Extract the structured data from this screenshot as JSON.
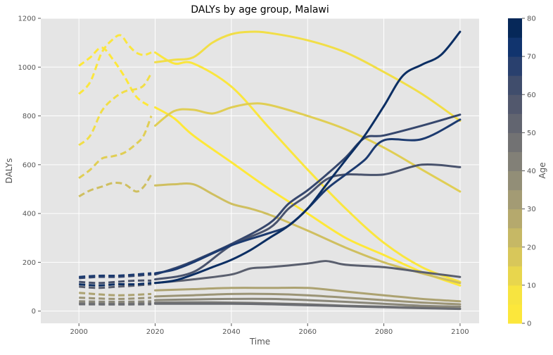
{
  "chart_data": {
    "type": "line",
    "title": "DALYs by age group, Malawi",
    "xlabel": "Time",
    "ylabel": "DALYs",
    "xlim": [
      1990,
      2105
    ],
    "ylim": [
      -50,
      1200
    ],
    "xticks": [
      2000,
      2020,
      2040,
      2060,
      2080,
      2100
    ],
    "yticks": [
      0,
      200,
      400,
      600,
      800,
      1000,
      1200
    ],
    "grid": true,
    "historical_style": "dashed",
    "projection_style": "solid",
    "colorbar": {
      "label": "Age",
      "ticks": [
        0,
        10,
        20,
        30,
        40,
        50,
        60,
        70,
        80
      ],
      "range": [
        0,
        80
      ],
      "colormap": "cividis_r",
      "steps": 16
    },
    "series": [
      {
        "age": 0,
        "historical": {
          "x": [
            2000,
            2003,
            2006,
            2009,
            2012,
            2015,
            2018,
            2019
          ],
          "y": [
            1005,
            1040,
            1080,
            1030,
            960,
            880,
            845,
            840
          ]
        },
        "projection": {
          "x": [
            2020,
            2025,
            2030,
            2040,
            2050,
            2060,
            2070,
            2080,
            2090,
            2100
          ],
          "y": [
            835,
            790,
            720,
            610,
            500,
            400,
            300,
            230,
            160,
            105
          ]
        }
      },
      {
        "age": 5,
        "historical": {
          "x": [
            2000,
            2003,
            2006,
            2009,
            2011,
            2013,
            2015,
            2017,
            2019
          ],
          "y": [
            890,
            940,
            1060,
            1115,
            1130,
            1090,
            1060,
            1050,
            1060
          ]
        },
        "projection": {
          "x": [
            2020,
            2025,
            2030,
            2040,
            2050,
            2060,
            2070,
            2080,
            2090,
            2100
          ],
          "y": [
            1060,
            1015,
            1015,
            920,
            750,
            580,
            420,
            280,
            180,
            120
          ]
        }
      },
      {
        "age": 10,
        "historical": {
          "x": [
            2000,
            2003,
            2006,
            2009,
            2012,
            2015,
            2017,
            2019
          ],
          "y": [
            680,
            720,
            820,
            870,
            900,
            910,
            925,
            975
          ]
        },
        "projection": {
          "x": [
            2020,
            2025,
            2030,
            2035,
            2040,
            2045,
            2050,
            2060,
            2070,
            2080,
            2090,
            2100
          ],
          "y": [
            1020,
            1030,
            1040,
            1100,
            1135,
            1145,
            1140,
            1110,
            1060,
            980,
            890,
            780
          ]
        }
      },
      {
        "age": 15,
        "historical": {
          "x": [
            2000,
            2003,
            2006,
            2009,
            2012,
            2015,
            2017,
            2019
          ],
          "y": [
            545,
            580,
            625,
            635,
            650,
            685,
            720,
            800
          ]
        },
        "projection": {
          "x": [
            2020,
            2025,
            2030,
            2035,
            2040,
            2045,
            2050,
            2060,
            2070,
            2080,
            2090,
            2100
          ],
          "y": [
            760,
            820,
            825,
            810,
            835,
            850,
            845,
            800,
            745,
            670,
            580,
            490
          ]
        }
      },
      {
        "age": 20,
        "historical": {
          "x": [
            2000,
            2003,
            2006,
            2009,
            2012,
            2015,
            2017,
            2019
          ],
          "y": [
            470,
            495,
            510,
            525,
            520,
            490,
            510,
            560
          ]
        },
        "projection": {
          "x": [
            2020,
            2025,
            2030,
            2035,
            2040,
            2045,
            2050,
            2060,
            2070,
            2080,
            2090,
            2100
          ],
          "y": [
            515,
            520,
            520,
            480,
            440,
            420,
            395,
            330,
            260,
            200,
            155,
            115
          ]
        }
      },
      {
        "age": 30,
        "historical": {
          "x": [
            2000,
            2010,
            2019
          ],
          "y": [
            75,
            65,
            70
          ]
        },
        "projection": {
          "x": [
            2020,
            2030,
            2040,
            2050,
            2060,
            2070,
            2080,
            2090,
            2100
          ],
          "y": [
            85,
            90,
            95,
            95,
            95,
            80,
            65,
            50,
            40
          ]
        }
      },
      {
        "age": 35,
        "historical": {
          "x": [
            2000,
            2010,
            2019
          ],
          "y": [
            55,
            50,
            55
          ]
        },
        "projection": {
          "x": [
            2020,
            2030,
            2040,
            2050,
            2060,
            2070,
            2080,
            2090,
            2100
          ],
          "y": [
            60,
            65,
            70,
            70,
            65,
            55,
            45,
            35,
            28
          ]
        }
      },
      {
        "age": 40,
        "historical": {
          "x": [
            2000,
            2010,
            2019
          ],
          "y": [
            40,
            38,
            40
          ]
        },
        "projection": {
          "x": [
            2020,
            2030,
            2040,
            2050,
            2060,
            2070,
            2080,
            2090,
            2100
          ],
          "y": [
            45,
            48,
            50,
            50,
            45,
            38,
            30,
            22,
            18
          ]
        }
      },
      {
        "age": 45,
        "historical": {
          "x": [
            2000,
            2010,
            2019
          ],
          "y": [
            32,
            30,
            32
          ]
        },
        "projection": {
          "x": [
            2020,
            2030,
            2040,
            2050,
            2060,
            2070,
            2080,
            2090,
            2100
          ],
          "y": [
            35,
            36,
            35,
            32,
            28,
            22,
            18,
            14,
            10
          ]
        }
      },
      {
        "age": 50,
        "historical": {
          "x": [
            2000,
            2010,
            2019
          ],
          "y": [
            28,
            27,
            28
          ]
        },
        "projection": {
          "x": [
            2020,
            2030,
            2040,
            2050,
            2060,
            2070,
            2080,
            2090,
            2100
          ],
          "y": [
            30,
            30,
            30,
            28,
            24,
            20,
            16,
            12,
            9
          ]
        }
      },
      {
        "age": 55,
        "historical": {
          "x": [
            2000,
            2005,
            2010,
            2015,
            2019
          ],
          "y": [
            100,
            95,
            100,
            105,
            110
          ]
        },
        "projection": {
          "x": [
            2020,
            2030,
            2040,
            2045,
            2050,
            2060,
            2065,
            2070,
            2080,
            2090,
            2100
          ],
          "y": [
            115,
            130,
            150,
            175,
            180,
            195,
            205,
            190,
            180,
            160,
            140
          ]
        }
      },
      {
        "age": 60,
        "historical": {
          "x": [
            2000,
            2005,
            2010,
            2015,
            2019
          ],
          "y": [
            120,
            115,
            120,
            125,
            125
          ]
        },
        "projection": {
          "x": [
            2020,
            2030,
            2040,
            2050,
            2055,
            2060,
            2065,
            2070,
            2080,
            2090,
            2100
          ],
          "y": [
            130,
            160,
            270,
            340,
            420,
            475,
            540,
            560,
            560,
            600,
            590
          ]
        }
      },
      {
        "age": 65,
        "historical": {
          "x": [
            2000,
            2005,
            2010,
            2015,
            2019
          ],
          "y": [
            135,
            140,
            140,
            145,
            150
          ]
        },
        "projection": {
          "x": [
            2020,
            2025,
            2030,
            2040,
            2050,
            2055,
            2060,
            2065,
            2070,
            2075,
            2080,
            2090,
            2100
          ],
          "y": [
            150,
            175,
            205,
            275,
            360,
            440,
            495,
            560,
            630,
            710,
            720,
            760,
            805
          ]
        }
      },
      {
        "age": 70,
        "historical": {
          "x": [
            2000,
            2005,
            2010,
            2015,
            2019
          ],
          "y": [
            140,
            145,
            145,
            150,
            155
          ]
        },
        "projection": {
          "x": [
            2020,
            2025,
            2030,
            2040,
            2050,
            2055,
            2060,
            2065,
            2070,
            2075,
            2080,
            2090,
            2100
          ],
          "y": [
            155,
            170,
            200,
            270,
            320,
            350,
            420,
            500,
            560,
            620,
            700,
            705,
            785
          ]
        }
      },
      {
        "age": 75,
        "historical": {
          "x": [
            2000,
            2005,
            2010,
            2015,
            2019
          ],
          "y": [
            110,
            105,
            110,
            110,
            115
          ]
        },
        "projection": {
          "x": [
            2020,
            2025,
            2030,
            2035,
            2040,
            2045,
            2050,
            2055,
            2060,
            2065,
            2070,
            2075,
            2080,
            2085,
            2090,
            2095,
            2100
          ],
          "y": [
            115,
            125,
            150,
            180,
            210,
            250,
            300,
            350,
            420,
            520,
            620,
            720,
            840,
            965,
            1010,
            1050,
            1145
          ]
        }
      }
    ]
  }
}
